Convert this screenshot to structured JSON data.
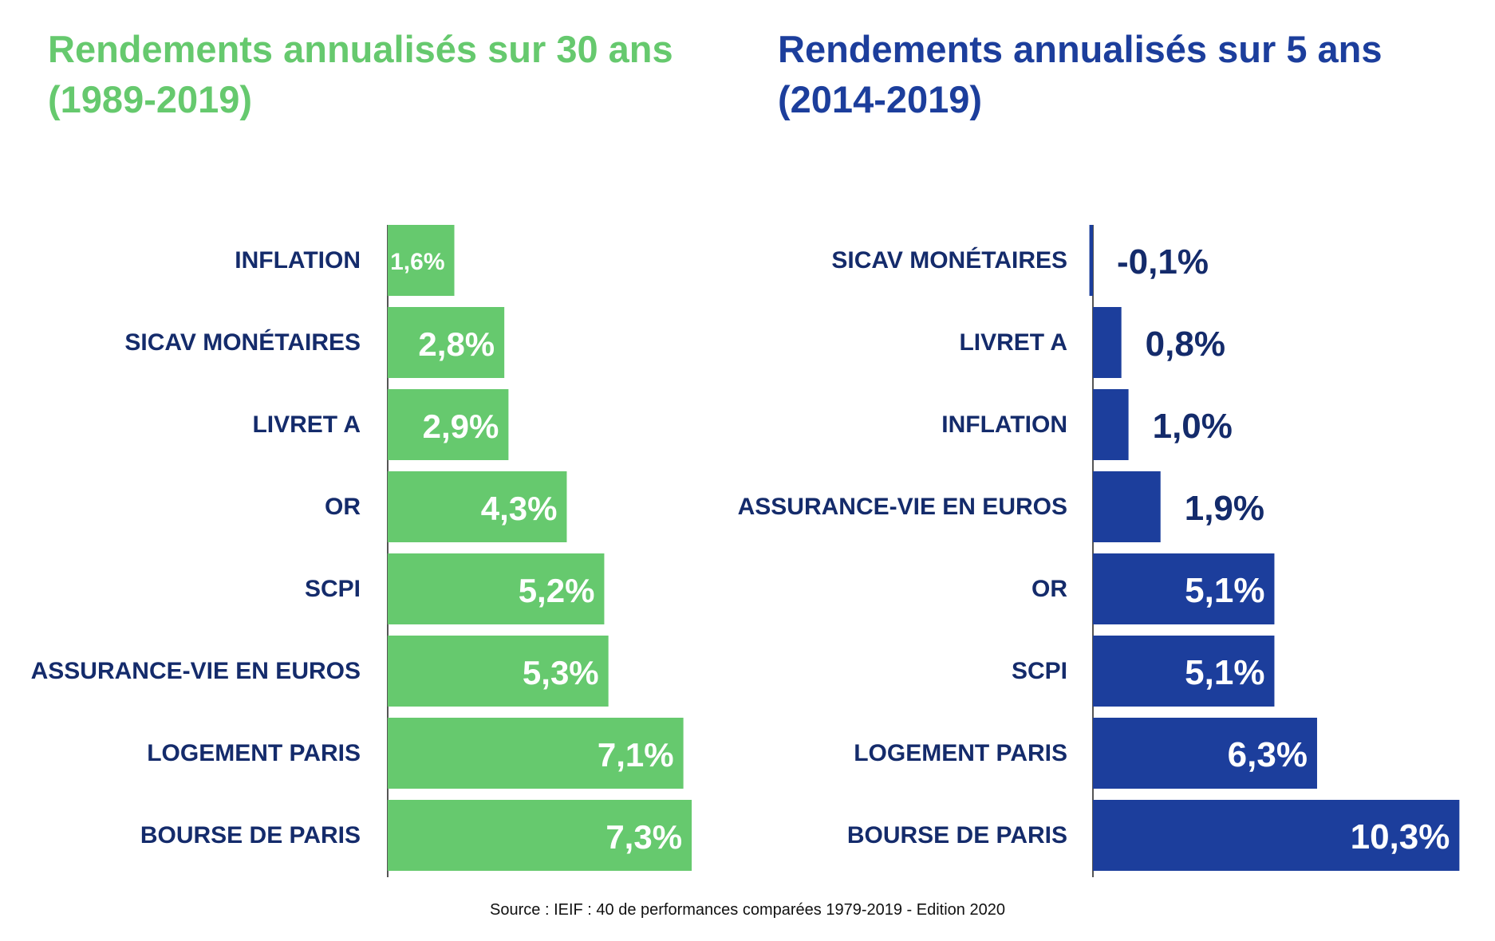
{
  "chart_data": [
    {
      "type": "bar",
      "orientation": "horizontal",
      "title": "Rendements annualisés sur 30 ans (1989-2019)",
      "color": "#66c96e",
      "categories": [
        "INFLATION",
        "SICAV MONÉTAIRES",
        "LIVRET A",
        "OR",
        "SCPI",
        "ASSURANCE-VIE EN EUROS",
        "LOGEMENT PARIS",
        "BOURSE DE PARIS"
      ],
      "values": [
        1.6,
        2.8,
        2.9,
        4.3,
        5.2,
        5.3,
        7.1,
        7.3
      ],
      "labels": [
        "1,6%",
        "2,8%",
        "2,9%",
        "4,3%",
        "5,2%",
        "5,3%",
        "7,1%",
        "7,3%"
      ],
      "unit": "%"
    },
    {
      "type": "bar",
      "orientation": "horizontal",
      "title": "Rendements annualisés sur 5 ans (2014-2019)",
      "color": "#1c3e9c",
      "categories": [
        "SICAV MONÉTAIRES",
        "LIVRET A",
        "INFLATION",
        "ASSURANCE-VIE EN EUROS",
        "OR",
        "SCPI",
        "LOGEMENT PARIS",
        "BOURSE DE PARIS"
      ],
      "values": [
        -0.1,
        0.8,
        1.0,
        1.9,
        5.1,
        5.1,
        6.3,
        10.3
      ],
      "labels": [
        "-0,1%",
        "0,8%",
        "1,0%",
        "1,9%",
        "5,1%",
        "5,1%",
        "6,3%",
        "10,3%"
      ],
      "unit": "%"
    }
  ],
  "titles": {
    "left_line1": "Rendements annualisés sur 30 ans",
    "left_line2": "(1989-2019)",
    "right_line1": "Rendements annualisés sur 5 ans",
    "right_line2": "(2014-2019)"
  },
  "source": "Source : IEIF : 40 de performances comparées 1979-2019 - Edition 2020"
}
